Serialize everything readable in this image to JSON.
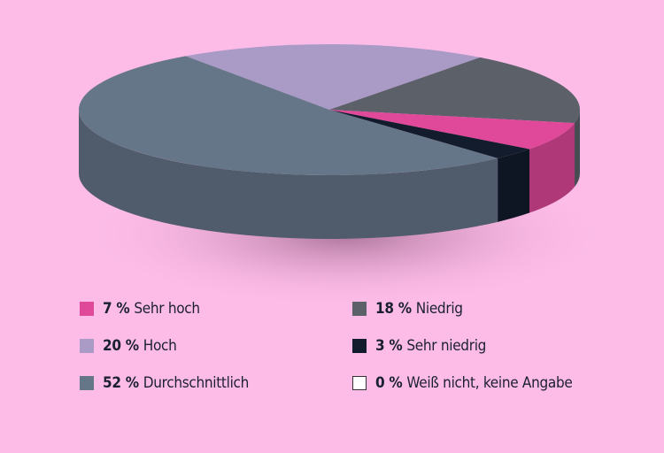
{
  "chart_data": {
    "type": "pie",
    "style": "3d",
    "unit": "%",
    "slices": [
      {
        "label": "Hoch",
        "value": 20,
        "color": "#a99ac6"
      },
      {
        "label": "Niedrig",
        "value": 18,
        "color": "#5b6069"
      },
      {
        "label": "Sehr hoch",
        "value": 7,
        "color": "#e0489a"
      },
      {
        "label": "Sehr niedrig",
        "value": 3,
        "color": "#131c2d"
      },
      {
        "label": "Durchschnittlich",
        "value": 52,
        "color": "#667689"
      },
      {
        "label": "Weiß nicht, keine Angabe",
        "value": 0,
        "color": "#ffffff"
      }
    ],
    "legend": [
      {
        "pct": "7 %",
        "label": "Sehr hoch",
        "color": "#e0489a"
      },
      {
        "pct": "20 %",
        "label": "Hoch",
        "color": "#a99ac6"
      },
      {
        "pct": "52 %",
        "label": "Durchschnittlich",
        "color": "#667689"
      },
      {
        "pct": "18 %",
        "label": "Niedrig",
        "color": "#5b6069"
      },
      {
        "pct": "3 %",
        "label": "Sehr niedrig",
        "color": "#131c2d"
      },
      {
        "pct": "0 %",
        "label": "Weiß nicht, keine Angabe",
        "color": "#ffffff"
      }
    ],
    "legend_position": "bottom",
    "background": "#fdbce8"
  }
}
